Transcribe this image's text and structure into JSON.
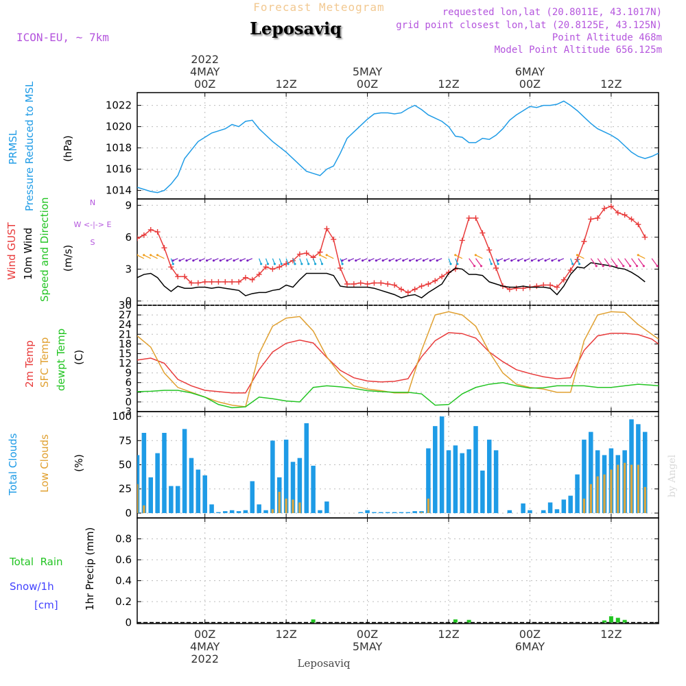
{
  "header": {
    "top_title": "Forecast Meteogram",
    "model": "ICON-EU, ~ 7km",
    "location": "Leposaviq",
    "requested": "requested lon,lat (20.8011E, 43.1017N)",
    "grid_point": "grid point closest lon,lat (20.8125E, 43.125N)",
    "point_altitude": "Point Altitude 468m",
    "model_altitude": "Model Point Altitude 656.125m",
    "footer_location": "Leposaviq",
    "watermark": "by Angel"
  },
  "time_axis": {
    "start_hour": -10,
    "end_hour": 67,
    "top_ticks": [
      {
        "hour": 0,
        "lines": [
          "2022",
          "4MAY",
          "00Z"
        ]
      },
      {
        "hour": 12,
        "lines": [
          "12Z"
        ]
      },
      {
        "hour": 24,
        "lines": [
          "5MAY",
          "00Z"
        ]
      },
      {
        "hour": 36,
        "lines": [
          "12Z"
        ]
      },
      {
        "hour": 48,
        "lines": [
          "6MAY",
          "00Z"
        ]
      },
      {
        "hour": 60,
        "lines": [
          "12Z"
        ]
      }
    ],
    "bottom_ticks": [
      {
        "hour": 0,
        "lines": [
          "00Z",
          "4MAY",
          "2022"
        ]
      },
      {
        "hour": 12,
        "lines": [
          "12Z"
        ]
      },
      {
        "hour": 24,
        "lines": [
          "00Z",
          "5MAY"
        ]
      },
      {
        "hour": 36,
        "lines": [
          "12Z"
        ]
      },
      {
        "hour": 48,
        "lines": [
          "00Z",
          "6MAY"
        ]
      },
      {
        "hour": 60,
        "lines": [
          "12Z"
        ]
      }
    ]
  },
  "panel_labels": {
    "pressure": [
      "PRMSL",
      "Pressure Reduced to MSL"
    ],
    "pressure_unit": "(hPa)",
    "wind": [
      "Wind GUST",
      "10m Wind",
      "Speed and Direction"
    ],
    "wind_unit": "(m/s)",
    "compass": [
      "N",
      "W <-|-> E",
      "S"
    ],
    "temp": [
      "2m Temp",
      "SFC Temp",
      "dewpt Temp"
    ],
    "temp_unit": "(C)",
    "clouds": [
      "Total Clouds",
      "Low Clouds"
    ],
    "clouds_unit": "(%)",
    "precip": [
      "Total  Rain",
      "Snow/1h",
      "[cm]"
    ],
    "precip_unit": "1hr Precip (mm)"
  },
  "colors": {
    "pressure": "#1e9be6",
    "gust": "#e83a3a",
    "wind": "#000000",
    "temp": "#e83a3a",
    "sfc_temp": "#e0a030",
    "dewpoint": "#22c422",
    "total_clouds": "#1e9be6",
    "low_clouds": "#d9a640",
    "rain": "#22c422",
    "snow": "#4040ff",
    "header_purple": "#b455dd",
    "title_orange": "#f2c890",
    "grid": "#bbbbbb"
  },
  "chart_data": [
    {
      "id": "pressure",
      "type": "line",
      "title": "PRMSL Pressure Reduced to MSL",
      "ylabel": "(hPa)",
      "ylim": [
        1013.2,
        1023.2
      ],
      "yticks": [
        1014,
        1016,
        1018,
        1020,
        1022
      ],
      "hours": [
        -10,
        -8,
        -7,
        -6,
        -5,
        -4,
        -3,
        -2,
        -1,
        0,
        1,
        2,
        3,
        4,
        5,
        6,
        7,
        8,
        10,
        12,
        13,
        14,
        15,
        16,
        17,
        18,
        19,
        20,
        21,
        22,
        23,
        24,
        25,
        26,
        27,
        28,
        29,
        30,
        31,
        32,
        33,
        34,
        35,
        36,
        37,
        38,
        39,
        40,
        41,
        42,
        43,
        44,
        45,
        46,
        47,
        48,
        49,
        50,
        51,
        52,
        53,
        54,
        55,
        56,
        57,
        58,
        59,
        60,
        61,
        62,
        63,
        64,
        65,
        66,
        67
      ],
      "series": [
        {
          "name": "PRMSL",
          "values": [
            1014.3,
            1013.9,
            1013.8,
            1014.0,
            1014.6,
            1015.4,
            1017.0,
            1017.8,
            1018.6,
            1019.0,
            1019.4,
            1019.6,
            1019.8,
            1020.2,
            1020.0,
            1020.5,
            1020.6,
            1019.8,
            1018.6,
            1017.6,
            1017.0,
            1016.4,
            1015.8,
            1015.6,
            1015.4,
            1016.0,
            1016.3,
            1017.5,
            1018.9,
            1019.5,
            1020.1,
            1020.7,
            1021.2,
            1021.3,
            1021.3,
            1021.2,
            1021.3,
            1021.7,
            1022.0,
            1021.6,
            1021.1,
            1020.8,
            1020.5,
            1020.0,
            1019.1,
            1019.0,
            1018.5,
            1018.5,
            1018.9,
            1018.8,
            1019.2,
            1019.8,
            1020.6,
            1021.1,
            1021.5,
            1021.9,
            1021.8,
            1022.0,
            1022.0,
            1022.1,
            1022.4,
            1022.0,
            1021.5,
            1020.9,
            1020.3,
            1019.8,
            1019.5,
            1019.2,
            1018.8,
            1018.2,
            1017.6,
            1017.2,
            1017.0,
            1017.2,
            1017.5
          ]
        }
      ]
    },
    {
      "id": "wind",
      "type": "line",
      "title": "Wind GUST / 10m Wind Speed and Direction",
      "ylabel": "(m/s)",
      "ylim": [
        -0.4,
        9.6
      ],
      "yticks": [
        0,
        3,
        6,
        9
      ],
      "hours": [
        -10,
        -9,
        -8,
        -7,
        -6,
        -5,
        -4,
        -3,
        -2,
        -1,
        0,
        1,
        2,
        3,
        4,
        5,
        6,
        7,
        8,
        9,
        10,
        11,
        12,
        13,
        14,
        15,
        16,
        17,
        18,
        19,
        20,
        21,
        22,
        23,
        24,
        25,
        26,
        27,
        28,
        29,
        30,
        31,
        32,
        33,
        34,
        35,
        36,
        37,
        38,
        39,
        40,
        41,
        42,
        43,
        44,
        45,
        46,
        47,
        48,
        49,
        50,
        51,
        52,
        53,
        54,
        55,
        56,
        57,
        58,
        59,
        60,
        61,
        62,
        63,
        64,
        65,
        66,
        67
      ],
      "series": [
        {
          "name": "Wind GUST",
          "values": [
            5.9,
            6.2,
            6.7,
            6.5,
            5.0,
            3.2,
            2.3,
            2.3,
            1.7,
            1.7,
            1.8,
            1.8,
            1.8,
            1.8,
            1.8,
            1.8,
            2.2,
            2.0,
            2.5,
            3.2,
            3.0,
            3.2,
            3.5,
            3.8,
            4.4,
            4.5,
            4.1,
            4.6,
            6.8,
            5.8,
            3.1,
            1.6,
            1.6,
            1.7,
            1.6,
            1.7,
            1.7,
            1.6,
            1.5,
            1.1,
            0.8,
            1.1,
            1.4,
            1.6,
            1.9,
            2.3,
            2.7,
            3.0,
            5.7,
            7.8,
            7.8,
            6.4,
            4.8,
            3.1,
            1.4,
            1.1,
            1.2,
            1.2,
            1.3,
            1.4,
            1.5,
            1.5,
            1.3,
            2.0,
            2.9,
            3.9,
            5.6,
            7.7,
            7.8,
            8.7,
            8.9,
            8.3,
            8.1,
            7.7,
            7.2,
            6.0
          ]
        },
        {
          "name": "10m Wind",
          "values": [
            2.2,
            2.5,
            2.6,
            2.2,
            1.4,
            0.9,
            1.4,
            1.2,
            1.2,
            1.3,
            1.3,
            1.2,
            1.3,
            1.2,
            1.1,
            1.0,
            0.5,
            0.7,
            0.8,
            0.8,
            1.0,
            1.1,
            1.5,
            1.3,
            2.0,
            2.6,
            2.6,
            2.6,
            2.6,
            2.4,
            1.4,
            1.3,
            1.3,
            1.3,
            1.3,
            1.2,
            1.0,
            0.8,
            0.6,
            0.3,
            0.5,
            0.6,
            0.3,
            0.8,
            1.2,
            1.6,
            2.6,
            3.1,
            3.0,
            2.5,
            2.5,
            2.4,
            1.8,
            1.6,
            1.4,
            1.3,
            1.3,
            1.4,
            1.3,
            1.3,
            1.3,
            1.2,
            0.6,
            1.4,
            2.5,
            3.2,
            3.1,
            3.6,
            3.5,
            3.4,
            3.3,
            3.1,
            3.0,
            2.7,
            2.3,
            1.8
          ]
        }
      ],
      "barbs_level": 4.0
    },
    {
      "id": "temperature",
      "type": "line",
      "title": "2m Temp / SFC Temp / dewpt Temp",
      "ylabel": "(C)",
      "ylim": [
        -3,
        30
      ],
      "yticks": [
        -3,
        0,
        3,
        6,
        9,
        12,
        15,
        18,
        21,
        24,
        27,
        30
      ],
      "hours": [
        -10,
        -8,
        -6,
        -4,
        -2,
        0,
        2,
        4,
        6,
        8,
        10,
        12,
        14,
        16,
        18,
        20,
        22,
        24,
        26,
        28,
        30,
        32,
        34,
        36,
        38,
        40,
        42,
        44,
        46,
        48,
        50,
        52,
        54,
        56,
        58,
        60,
        62,
        64,
        66,
        67
      ],
      "series": [
        {
          "name": "2m Temp",
          "values": [
            13.0,
            13.6,
            12.0,
            7.0,
            5.0,
            3.6,
            3.2,
            2.8,
            2.8,
            10.0,
            15.5,
            18.2,
            19.2,
            18.3,
            13.8,
            9.8,
            7.5,
            6.5,
            6.2,
            6.4,
            7.2,
            14.0,
            19.0,
            21.5,
            21.2,
            19.8,
            15.5,
            12.5,
            10.0,
            8.8,
            7.8,
            7.2,
            7.5,
            16.0,
            20.5,
            21.3,
            21.3,
            20.9,
            19.5,
            18.0
          ]
        },
        {
          "name": "SFC Temp",
          "values": [
            20.5,
            17.0,
            9.0,
            4.5,
            3.0,
            1.5,
            0.0,
            -1.0,
            -1.5,
            15.0,
            23.5,
            26.0,
            26.5,
            22.0,
            14.0,
            8.5,
            5.0,
            4.0,
            3.5,
            2.8,
            2.8,
            16.0,
            27.0,
            28.0,
            27.0,
            23.5,
            15.5,
            9.0,
            5.5,
            4.5,
            4.0,
            3.0,
            3.0,
            19.0,
            27.0,
            28.0,
            27.8,
            24.0,
            21.0,
            19.5
          ]
        },
        {
          "name": "dewpt Temp",
          "values": [
            3.2,
            3.3,
            3.6,
            3.6,
            2.8,
            1.5,
            -0.8,
            -1.8,
            -1.5,
            1.5,
            1.0,
            0.3,
            0.0,
            4.5,
            5.0,
            4.7,
            4.2,
            3.5,
            3.2,
            3.0,
            3.0,
            2.5,
            -1.0,
            -0.8,
            2.5,
            4.5,
            5.5,
            6.0,
            5.0,
            4.3,
            4.4,
            5.0,
            5.0,
            5.0,
            4.5,
            4.5,
            5.0,
            5.5,
            5.2,
            5.0
          ]
        }
      ]
    },
    {
      "id": "clouds",
      "type": "bar",
      "title": "Total Clouds / Low Clouds",
      "ylabel": "(%)",
      "ylim": [
        -5,
        105
      ],
      "yticks": [
        0,
        25,
        50,
        75,
        100
      ],
      "hours": [
        -10,
        -9,
        -8,
        -7,
        -6,
        -5,
        -4,
        -3,
        -2,
        -1,
        0,
        1,
        2,
        3,
        4,
        5,
        6,
        7,
        8,
        9,
        10,
        11,
        12,
        13,
        14,
        15,
        16,
        17,
        18,
        19,
        20,
        21,
        22,
        23,
        24,
        25,
        26,
        27,
        28,
        29,
        30,
        31,
        32,
        33,
        34,
        35,
        36,
        37,
        38,
        39,
        40,
        41,
        42,
        43,
        44,
        45,
        46,
        47,
        48,
        49,
        50,
        51,
        52,
        53,
        54,
        55,
        56,
        57,
        58,
        59,
        60,
        61,
        62,
        63,
        64,
        65,
        66,
        67
      ],
      "series": [
        {
          "name": "Total Clouds",
          "values": [
            60,
            83,
            37,
            62,
            83,
            28,
            28,
            87,
            57,
            45,
            39,
            9,
            1,
            2,
            3,
            2,
            3,
            33,
            9,
            3,
            75,
            37,
            76,
            53,
            57,
            93,
            49,
            3,
            12,
            0,
            0,
            0,
            0,
            1,
            3,
            1,
            1,
            1,
            1,
            1,
            1,
            2,
            2,
            67,
            90,
            100,
            65,
            70,
            62,
            66,
            90,
            44,
            76,
            65,
            0,
            3,
            0,
            10,
            3,
            0,
            3,
            11,
            4,
            14,
            18,
            40,
            76,
            84,
            65,
            60,
            67,
            60,
            65,
            97,
            92,
            84
          ]
        },
        {
          "name": "Low Clouds",
          "values": [
            30,
            8,
            0,
            0,
            0,
            0,
            0,
            0,
            0,
            0,
            0,
            0,
            0,
            0,
            0,
            0,
            0,
            0,
            0,
            0,
            4,
            22,
            15,
            14,
            11,
            0,
            0,
            0,
            0,
            0,
            0,
            0,
            0,
            0,
            0,
            0,
            0,
            0,
            0,
            0,
            0,
            0,
            1,
            15,
            0,
            0,
            0,
            0,
            0,
            0,
            0,
            0,
            0,
            0,
            0,
            0,
            0,
            0,
            0,
            0,
            0,
            0,
            0,
            0,
            0,
            0,
            15,
            30,
            38,
            40,
            45,
            50,
            52,
            50,
            50,
            27
          ]
        }
      ]
    },
    {
      "id": "precip",
      "type": "bar",
      "title": "1hr Precip (mm)",
      "ylabel": "1hr Precip (mm)",
      "ylim": [
        -0.01,
        1.0
      ],
      "yticks": [
        0,
        0.2,
        0.4,
        0.6,
        0.8
      ],
      "ytick_labels": [
        "0",
        "0.2",
        "0.4",
        "0.6",
        "0.8"
      ],
      "hours": [
        16,
        37,
        39,
        59,
        60,
        61,
        62
      ],
      "series": [
        {
          "name": "Total Rain",
          "values": [
            0.03,
            0.03,
            0.025,
            0.02,
            0.06,
            0.045,
            0.025
          ]
        },
        {
          "name": "Snow/1h",
          "values": [
            0,
            0,
            0,
            0,
            0,
            0,
            0
          ]
        }
      ]
    }
  ]
}
